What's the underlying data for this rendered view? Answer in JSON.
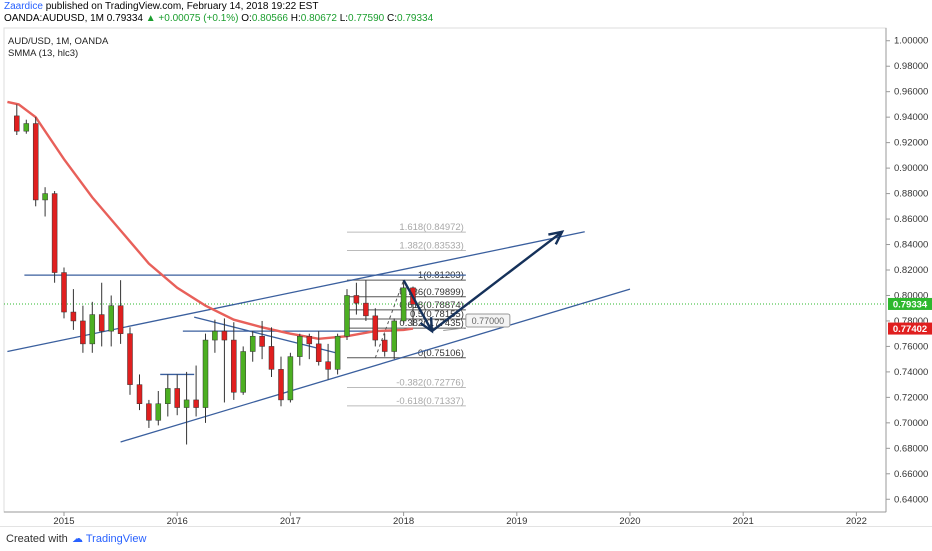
{
  "header": {
    "author": "Zaardice",
    "published_text": "published on TradingView.com, February 14, 2018 19:22 EST",
    "symbol": "OANDA:AUDUSD, 1M",
    "last": "0.79334",
    "change": "+0.00075 (+0.1%)",
    "open_label": "O:",
    "open": "0.80566",
    "high_label": "H:",
    "high": "0.80672",
    "low_label": "L:",
    "low": "0.77590",
    "close_label": "C:",
    "close": "0.79334"
  },
  "legend": {
    "symbol_line": "AUD/USD, 1M, OANDA",
    "indicator_line": "SMMA (13, hlc3)"
  },
  "footer": {
    "created_with": "Created with",
    "brand": "TradingView"
  },
  "colors": {
    "up": "#4caf22",
    "down": "#e01f1f",
    "smma": "#e8605a",
    "trendline": "#3a5f9e",
    "arrow": "#15315a",
    "fib_line": "#555555",
    "fib_ext_line": "#bbbbbb",
    "price_badge": "#2db82d",
    "smma_badge": "#e01f1f"
  },
  "chart_data": {
    "type": "candlestick",
    "title": "AUD/USD, 1M, OANDA",
    "x_tick_labels": [
      "2015",
      "2016",
      "2017",
      "2018",
      "2019",
      "2020",
      "2021",
      "2022"
    ],
    "ylim": [
      0.63,
      1.01
    ],
    "y_tick_labels": [
      "1.00000",
      "0.98000",
      "0.96000",
      "0.94000",
      "0.92000",
      "0.90000",
      "0.88000",
      "0.86000",
      "0.84000",
      "0.82000",
      "0.80000",
      "0.78000",
      "0.76000",
      "0.74000",
      "0.72000",
      "0.70000",
      "0.68000",
      "0.66000",
      "0.64000"
    ],
    "y_ticks": [
      1.0,
      0.98,
      0.96,
      0.94,
      0.92,
      0.9,
      0.88,
      0.86,
      0.84,
      0.82,
      0.8,
      0.78,
      0.76,
      0.74,
      0.72,
      0.7,
      0.68,
      0.66,
      0.64
    ],
    "candles": [
      {
        "t": 2014.583,
        "o": 0.941,
        "h": 0.95,
        "l": 0.926,
        "c": 0.929
      },
      {
        "t": 2014.667,
        "o": 0.929,
        "h": 0.938,
        "l": 0.927,
        "c": 0.935
      },
      {
        "t": 2014.75,
        "o": 0.935,
        "h": 0.94,
        "l": 0.87,
        "c": 0.875
      },
      {
        "t": 2014.833,
        "o": 0.875,
        "h": 0.885,
        "l": 0.862,
        "c": 0.88
      },
      {
        "t": 2014.917,
        "o": 0.88,
        "h": 0.882,
        "l": 0.81,
        "c": 0.818
      },
      {
        "t": 2015.0,
        "o": 0.818,
        "h": 0.822,
        "l": 0.782,
        "c": 0.787
      },
      {
        "t": 2015.083,
        "o": 0.787,
        "h": 0.805,
        "l": 0.773,
        "c": 0.78
      },
      {
        "t": 2015.167,
        "o": 0.78,
        "h": 0.792,
        "l": 0.755,
        "c": 0.762
      },
      {
        "t": 2015.25,
        "o": 0.762,
        "h": 0.795,
        "l": 0.755,
        "c": 0.785
      },
      {
        "t": 2015.333,
        "o": 0.785,
        "h": 0.81,
        "l": 0.76,
        "c": 0.772
      },
      {
        "t": 2015.417,
        "o": 0.772,
        "h": 0.8,
        "l": 0.76,
        "c": 0.792
      },
      {
        "t": 2015.5,
        "o": 0.792,
        "h": 0.812,
        "l": 0.762,
        "c": 0.77
      },
      {
        "t": 2015.583,
        "o": 0.77,
        "h": 0.775,
        "l": 0.722,
        "c": 0.73
      },
      {
        "t": 2015.667,
        "o": 0.73,
        "h": 0.738,
        "l": 0.71,
        "c": 0.715
      },
      {
        "t": 2015.75,
        "o": 0.715,
        "h": 0.718,
        "l": 0.696,
        "c": 0.702
      },
      {
        "t": 2015.833,
        "o": 0.702,
        "h": 0.725,
        "l": 0.698,
        "c": 0.715
      },
      {
        "t": 2015.917,
        "o": 0.715,
        "h": 0.738,
        "l": 0.705,
        "c": 0.727
      },
      {
        "t": 2016.0,
        "o": 0.727,
        "h": 0.738,
        "l": 0.706,
        "c": 0.712
      },
      {
        "t": 2016.083,
        "o": 0.712,
        "h": 0.74,
        "l": 0.683,
        "c": 0.718
      },
      {
        "t": 2016.167,
        "o": 0.718,
        "h": 0.745,
        "l": 0.705,
        "c": 0.712
      },
      {
        "t": 2016.25,
        "o": 0.712,
        "h": 0.77,
        "l": 0.7,
        "c": 0.765
      },
      {
        "t": 2016.333,
        "o": 0.765,
        "h": 0.781,
        "l": 0.755,
        "c": 0.772
      },
      {
        "t": 2016.417,
        "o": 0.772,
        "h": 0.782,
        "l": 0.716,
        "c": 0.765
      },
      {
        "t": 2016.5,
        "o": 0.765,
        "h": 0.779,
        "l": 0.718,
        "c": 0.724
      },
      {
        "t": 2016.583,
        "o": 0.724,
        "h": 0.76,
        "l": 0.722,
        "c": 0.756
      },
      {
        "t": 2016.667,
        "o": 0.756,
        "h": 0.772,
        "l": 0.748,
        "c": 0.768
      },
      {
        "t": 2016.75,
        "o": 0.768,
        "h": 0.78,
        "l": 0.75,
        "c": 0.76
      },
      {
        "t": 2016.833,
        "o": 0.76,
        "h": 0.775,
        "l": 0.736,
        "c": 0.742
      },
      {
        "t": 2016.917,
        "o": 0.742,
        "h": 0.752,
        "l": 0.713,
        "c": 0.718
      },
      {
        "t": 2017.0,
        "o": 0.718,
        "h": 0.755,
        "l": 0.716,
        "c": 0.752
      },
      {
        "t": 2017.083,
        "o": 0.752,
        "h": 0.77,
        "l": 0.745,
        "c": 0.768
      },
      {
        "t": 2017.167,
        "o": 0.768,
        "h": 0.77,
        "l": 0.75,
        "c": 0.762
      },
      {
        "t": 2017.25,
        "o": 0.762,
        "h": 0.772,
        "l": 0.745,
        "c": 0.748
      },
      {
        "t": 2017.333,
        "o": 0.748,
        "h": 0.762,
        "l": 0.734,
        "c": 0.742
      },
      {
        "t": 2017.417,
        "o": 0.742,
        "h": 0.77,
        "l": 0.738,
        "c": 0.768
      },
      {
        "t": 2017.5,
        "o": 0.768,
        "h": 0.805,
        "l": 0.765,
        "c": 0.8
      },
      {
        "t": 2017.583,
        "o": 0.8,
        "h": 0.81,
        "l": 0.785,
        "c": 0.794
      },
      {
        "t": 2017.667,
        "o": 0.794,
        "h": 0.812,
        "l": 0.78,
        "c": 0.784
      },
      {
        "t": 2017.75,
        "o": 0.784,
        "h": 0.79,
        "l": 0.76,
        "c": 0.765
      },
      {
        "t": 2017.833,
        "o": 0.765,
        "h": 0.77,
        "l": 0.752,
        "c": 0.756
      },
      {
        "t": 2017.917,
        "o": 0.756,
        "h": 0.782,
        "l": 0.75,
        "c": 0.78
      },
      {
        "t": 2018.0,
        "o": 0.78,
        "h": 0.812,
        "l": 0.778,
        "c": 0.806
      },
      {
        "t": 2018.083,
        "o": 0.806,
        "h": 0.807,
        "l": 0.776,
        "c": 0.793
      }
    ],
    "smma_13_hlc3": [
      {
        "t": 2014.5,
        "v": 0.952
      },
      {
        "t": 2014.6,
        "v": 0.95
      },
      {
        "t": 2014.75,
        "v": 0.94
      },
      {
        "t": 2015.0,
        "v": 0.907
      },
      {
        "t": 2015.25,
        "v": 0.877
      },
      {
        "t": 2015.5,
        "v": 0.851
      },
      {
        "t": 2015.75,
        "v": 0.825
      },
      {
        "t": 2016.0,
        "v": 0.806
      },
      {
        "t": 2016.25,
        "v": 0.792
      },
      {
        "t": 2016.5,
        "v": 0.781
      },
      {
        "t": 2016.75,
        "v": 0.775
      },
      {
        "t": 2017.0,
        "v": 0.77
      },
      {
        "t": 2017.25,
        "v": 0.766
      },
      {
        "t": 2017.5,
        "v": 0.768
      },
      {
        "t": 2017.75,
        "v": 0.772
      },
      {
        "t": 2018.0,
        "v": 0.773
      },
      {
        "t": 2018.083,
        "v": 0.774
      }
    ],
    "fib_levels": [
      {
        "ratio": 1.618,
        "price": 0.84972,
        "label": "1.618(0.84972)",
        "extension": true
      },
      {
        "ratio": 1.382,
        "price": 0.83533,
        "label": "1.382(0.83533)",
        "extension": true
      },
      {
        "ratio": 1,
        "price": 0.81203,
        "label": "1(0.81203)",
        "extension": false
      },
      {
        "ratio": 0.786,
        "price": 0.79899,
        "label": "0.786(0.79899)",
        "extension": false
      },
      {
        "ratio": 0.618,
        "price": 0.78874,
        "label": "0.618(0.78874)",
        "extension": false
      },
      {
        "ratio": 0.5,
        "price": 0.78155,
        "label": "0.5(0.78155)",
        "extension": false
      },
      {
        "ratio": 0.382,
        "price": 0.77435,
        "label": "0.382(0.77435)",
        "extension": false
      },
      {
        "ratio": 0,
        "price": 0.75106,
        "label": "0(0.75106)",
        "extension": false
      },
      {
        "ratio": -0.382,
        "price": 0.72776,
        "label": "-0.382(0.72776)",
        "extension": true
      },
      {
        "ratio": -0.618,
        "price": 0.71337,
        "label": "-0.618(0.71337)",
        "extension": true
      }
    ],
    "fib_t_start": 2017.5,
    "fib_t_end": 2022.3,
    "trendlines": [
      {
        "t1": 2014.5,
        "p1": 0.756,
        "t2": 2019.6,
        "p2": 0.85
      },
      {
        "t1": 2015.5,
        "p1": 0.685,
        "t2": 2020.0,
        "p2": 0.805
      },
      {
        "t1": 2014.65,
        "p1": 0.816,
        "t2": 2018.55,
        "p2": 0.816
      },
      {
        "t1": 2016.05,
        "p1": 0.772,
        "t2": 2017.9,
        "p2": 0.772
      },
      {
        "t1": 2016.15,
        "p1": 0.783,
        "t2": 2017.4,
        "p2": 0.755
      },
      {
        "t1": 2015.85,
        "p1": 0.738,
        "t2": 2016.15,
        "p2": 0.738
      }
    ],
    "projection_arrows": [
      {
        "t1": 2018.0,
        "p1": 0.812,
        "t2": 2018.25,
        "p2": 0.772
      },
      {
        "t1": 2018.25,
        "p1": 0.772,
        "t2": 2019.4,
        "p2": 0.85
      }
    ],
    "annotation": {
      "t": 2018.55,
      "price": 0.78,
      "text": "0.77000"
    },
    "current_price": {
      "price": 0.79334,
      "label": "0.79334"
    },
    "smma_last": {
      "price": 0.77402,
      "label": "0.77402"
    }
  }
}
